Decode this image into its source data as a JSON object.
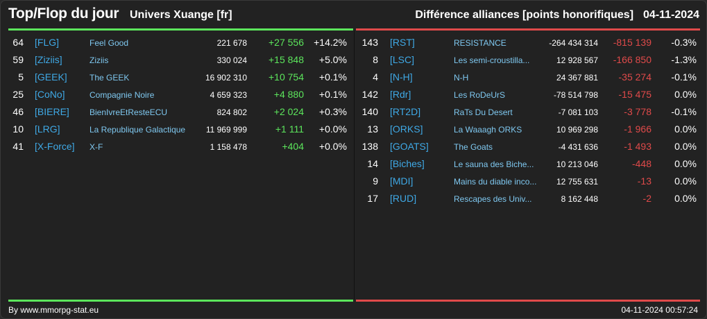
{
  "header": {
    "title": "Top/Flop du jour",
    "subtitle": "Univers Xuange [fr]",
    "right_title": "Différence alliances [points honorifiques]",
    "date": "04-11-2024"
  },
  "colors": {
    "positive": "#5ce65c",
    "negative": "#e04a4a",
    "tag": "#3fa9e6",
    "name": "#7fc8f0"
  },
  "top": [
    {
      "rank": "64",
      "tag": "[FLG]",
      "name": "Feel Good",
      "points": "221 678",
      "diff": "+27 556",
      "pct": "+14.2%"
    },
    {
      "rank": "59",
      "tag": "[Ziziis]",
      "name": "Ziziis",
      "points": "330 024",
      "diff": "+15 848",
      "pct": "+5.0%"
    },
    {
      "rank": "5",
      "tag": "[GEEK]",
      "name": "The GEEK",
      "points": "16 902 310",
      "diff": "+10 754",
      "pct": "+0.1%"
    },
    {
      "rank": "25",
      "tag": "[CoNo]",
      "name": "Compagnie Noire",
      "points": "4 659 323",
      "diff": "+4 880",
      "pct": "+0.1%"
    },
    {
      "rank": "46",
      "tag": "[BIERE]",
      "name": "BienIvreEtResteECU",
      "points": "824 802",
      "diff": "+2 024",
      "pct": "+0.3%"
    },
    {
      "rank": "10",
      "tag": "[LRG]",
      "name": "La Republique Galactique",
      "points": "11 969 999",
      "diff": "+1 111",
      "pct": "+0.0%"
    },
    {
      "rank": "41",
      "tag": "[X-Force]",
      "name": "X-F",
      "points": "1 158 478",
      "diff": "+404",
      "pct": "+0.0%"
    }
  ],
  "flop": [
    {
      "rank": "143",
      "tag": "[RST]",
      "name": "RESISTANCE",
      "points": "-264 434 314",
      "diff": "-815 139",
      "pct": "-0.3%"
    },
    {
      "rank": "8",
      "tag": "[LSC]",
      "name": "Les semi-croustilla...",
      "points": "12 928 567",
      "diff": "-166 850",
      "pct": "-1.3%"
    },
    {
      "rank": "4",
      "tag": "[N-H]",
      "name": "N-H",
      "points": "24 367 881",
      "diff": "-35 274",
      "pct": "-0.1%"
    },
    {
      "rank": "142",
      "tag": "[Rdr]",
      "name": "Les RoDeUrS",
      "points": "-78 514 798",
      "diff": "-15 475",
      "pct": "0.0%"
    },
    {
      "rank": "140",
      "tag": "[RT2D]",
      "name": "RaTs Du Desert",
      "points": "-7 081 103",
      "diff": "-3 778",
      "pct": "-0.1%"
    },
    {
      "rank": "13",
      "tag": "[ORKS]",
      "name": "La Waaagh ORKS",
      "points": "10 969 298",
      "diff": "-1 966",
      "pct": "0.0%"
    },
    {
      "rank": "138",
      "tag": "[GOATS]",
      "name": "The Goats",
      "points": "-4 431 636",
      "diff": "-1 493",
      "pct": "0.0%"
    },
    {
      "rank": "14",
      "tag": "[Biches]",
      "name": "Le sauna des Biche...",
      "points": "10 213 046",
      "diff": "-448",
      "pct": "0.0%"
    },
    {
      "rank": "9",
      "tag": "[MDI]",
      "name": "Mains du diable inco...",
      "points": "12 755 631",
      "diff": "-13",
      "pct": "0.0%"
    },
    {
      "rank": "17",
      "tag": "[RUD]",
      "name": "Rescapes des Univ...",
      "points": "8 162 448",
      "diff": "-2",
      "pct": "0.0%"
    }
  ],
  "footer": {
    "credit": "By www.mmorpg-stat.eu",
    "timestamp": "04-11-2024 00:57:24"
  }
}
